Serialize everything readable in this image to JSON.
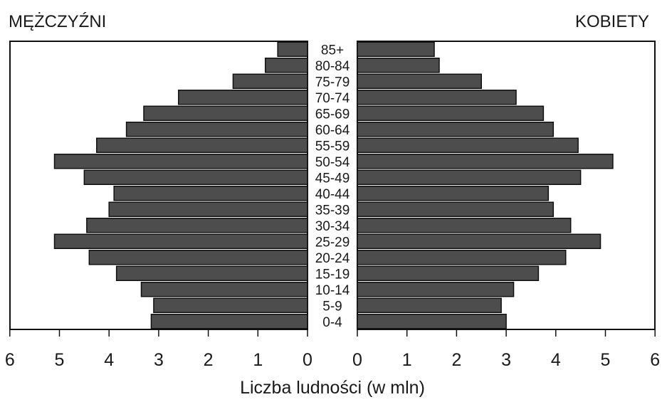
{
  "chart_data": {
    "type": "bar",
    "orientation": "horizontal",
    "layout": "population-pyramid",
    "xlabel": "Liczba ludności (w mln)",
    "categories": [
      "85+",
      "80-84",
      "75-79",
      "70-74",
      "65-69",
      "60-64",
      "55-59",
      "50-54",
      "45-49",
      "40-44",
      "35-39",
      "30-34",
      "25-29",
      "20-24",
      "15-19",
      "10-14",
      "5-9",
      "0-4"
    ],
    "series": [
      {
        "name": "MĘŻCZYŹNI",
        "side": "left",
        "values": [
          0.6,
          0.85,
          1.5,
          2.6,
          3.3,
          3.65,
          4.25,
          5.1,
          4.5,
          3.9,
          4.0,
          4.45,
          5.1,
          4.4,
          3.85,
          3.35,
          3.1,
          3.15
        ]
      },
      {
        "name": "KOBIETY",
        "side": "right",
        "values": [
          1.55,
          1.65,
          2.5,
          3.2,
          3.75,
          3.95,
          4.45,
          5.15,
          4.5,
          3.85,
          3.95,
          4.3,
          4.9,
          4.2,
          3.65,
          3.15,
          2.9,
          3.0
        ]
      }
    ],
    "xlim": [
      0,
      6
    ],
    "ticks": [
      6,
      5,
      4,
      3,
      2,
      1,
      0
    ],
    "ticks_right": [
      0,
      1,
      2,
      3,
      4,
      5,
      6
    ],
    "colors": {
      "bar": "#4d4d4d",
      "stroke": "#111111",
      "frame": "#111111"
    }
  }
}
